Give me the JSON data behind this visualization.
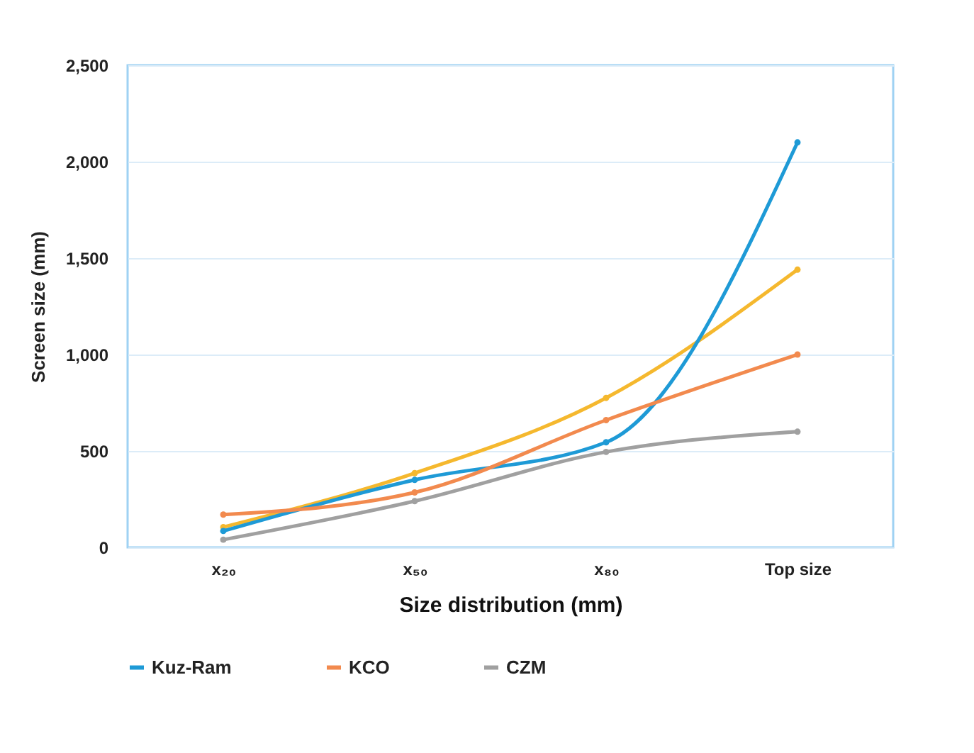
{
  "chart_data": {
    "type": "line",
    "xlabel": "Size distribution (mm)",
    "ylabel": "Screen size (mm)",
    "categories": [
      "x₂₀",
      "x₅₀",
      "x₈₀",
      "Top size"
    ],
    "series": [
      {
        "color": "#f5b82e",
        "values": [
          105,
          385,
          775,
          1440
        ]
      },
      {
        "name": "Kuz-Ram",
        "color": "#1e9ad6",
        "values": [
          85,
          350,
          545,
          2100
        ]
      },
      {
        "name": "KCO",
        "color": "#f28a4e",
        "values": [
          170,
          285,
          660,
          1000
        ]
      },
      {
        "name": "CZM",
        "color": "#a0a0a0",
        "values": [
          40,
          240,
          495,
          600
        ]
      }
    ],
    "ylim": [
      0,
      2500
    ],
    "yticks": [
      0,
      500,
      {
        "value": 1000,
        "label": "1,000"
      },
      {
        "value": 1500,
        "label": "1,500"
      },
      {
        "value": 2000,
        "label": "2,000"
      },
      {
        "value": 2500,
        "label": "2,500"
      }
    ],
    "grid": "y",
    "legend": "bottom",
    "marker": "circle",
    "line_style": "solid"
  }
}
